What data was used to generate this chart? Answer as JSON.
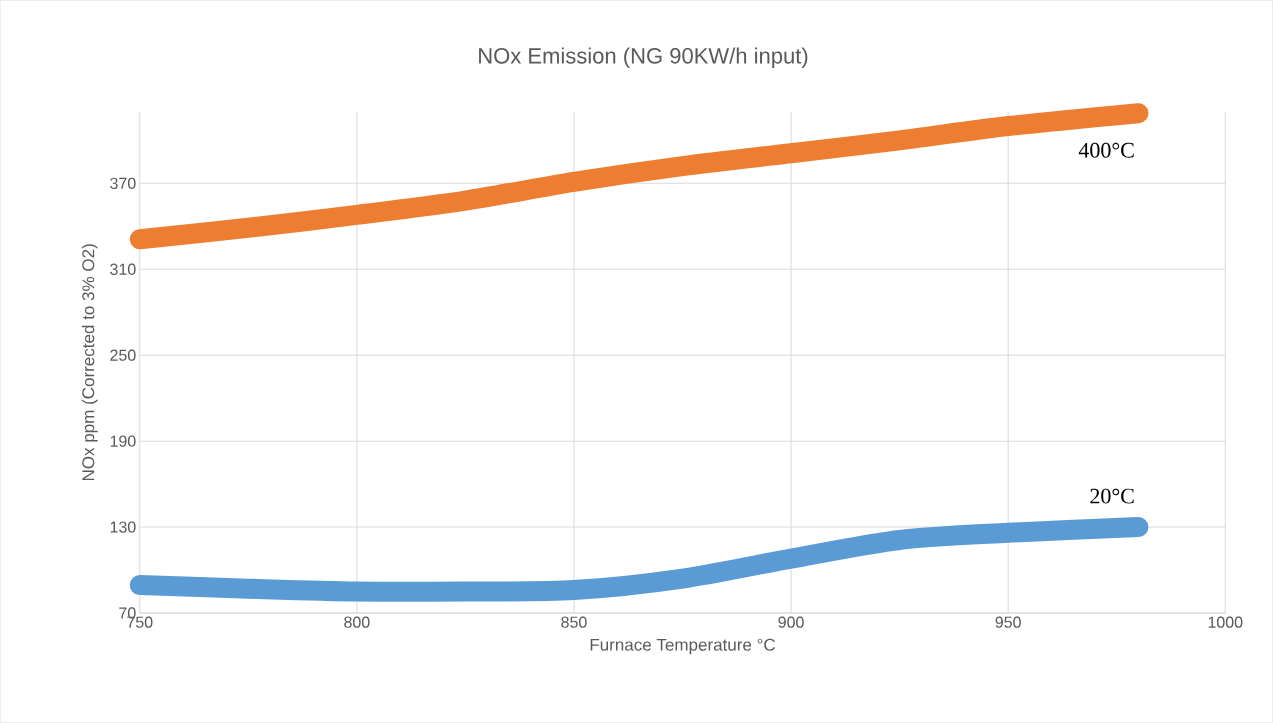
{
  "chart_data": {
    "type": "line",
    "title": "NOx Emission (NG 90KW/h input)",
    "xlabel": "Furnace Temperature °C",
    "ylabel": "NOx ppm (Corrected to 3% O2)",
    "xlim": [
      750,
      1000
    ],
    "xticks": [
      750,
      800,
      850,
      900,
      950,
      1000
    ],
    "ylim": [
      70,
      420
    ],
    "yticks": [
      70,
      130,
      190,
      250,
      310,
      370
    ],
    "grid": true,
    "series": [
      {
        "color": "#ed7d31",
        "x": [
          750,
          775,
          800,
          825,
          850,
          875,
          900,
          925,
          950,
          980
        ],
        "values": [
          331,
          339,
          348,
          358,
          371,
          382,
          391,
          400,
          410,
          419
        ]
      },
      {
        "color": "#5b9bd5",
        "x": [
          750,
          775,
          800,
          825,
          850,
          875,
          900,
          925,
          950,
          980
        ],
        "values": [
          89.5,
          87,
          85,
          85,
          86,
          94,
          108,
          121,
          126,
          130
        ]
      }
    ],
    "annotations": [
      "400°C",
      "20°C"
    ]
  }
}
